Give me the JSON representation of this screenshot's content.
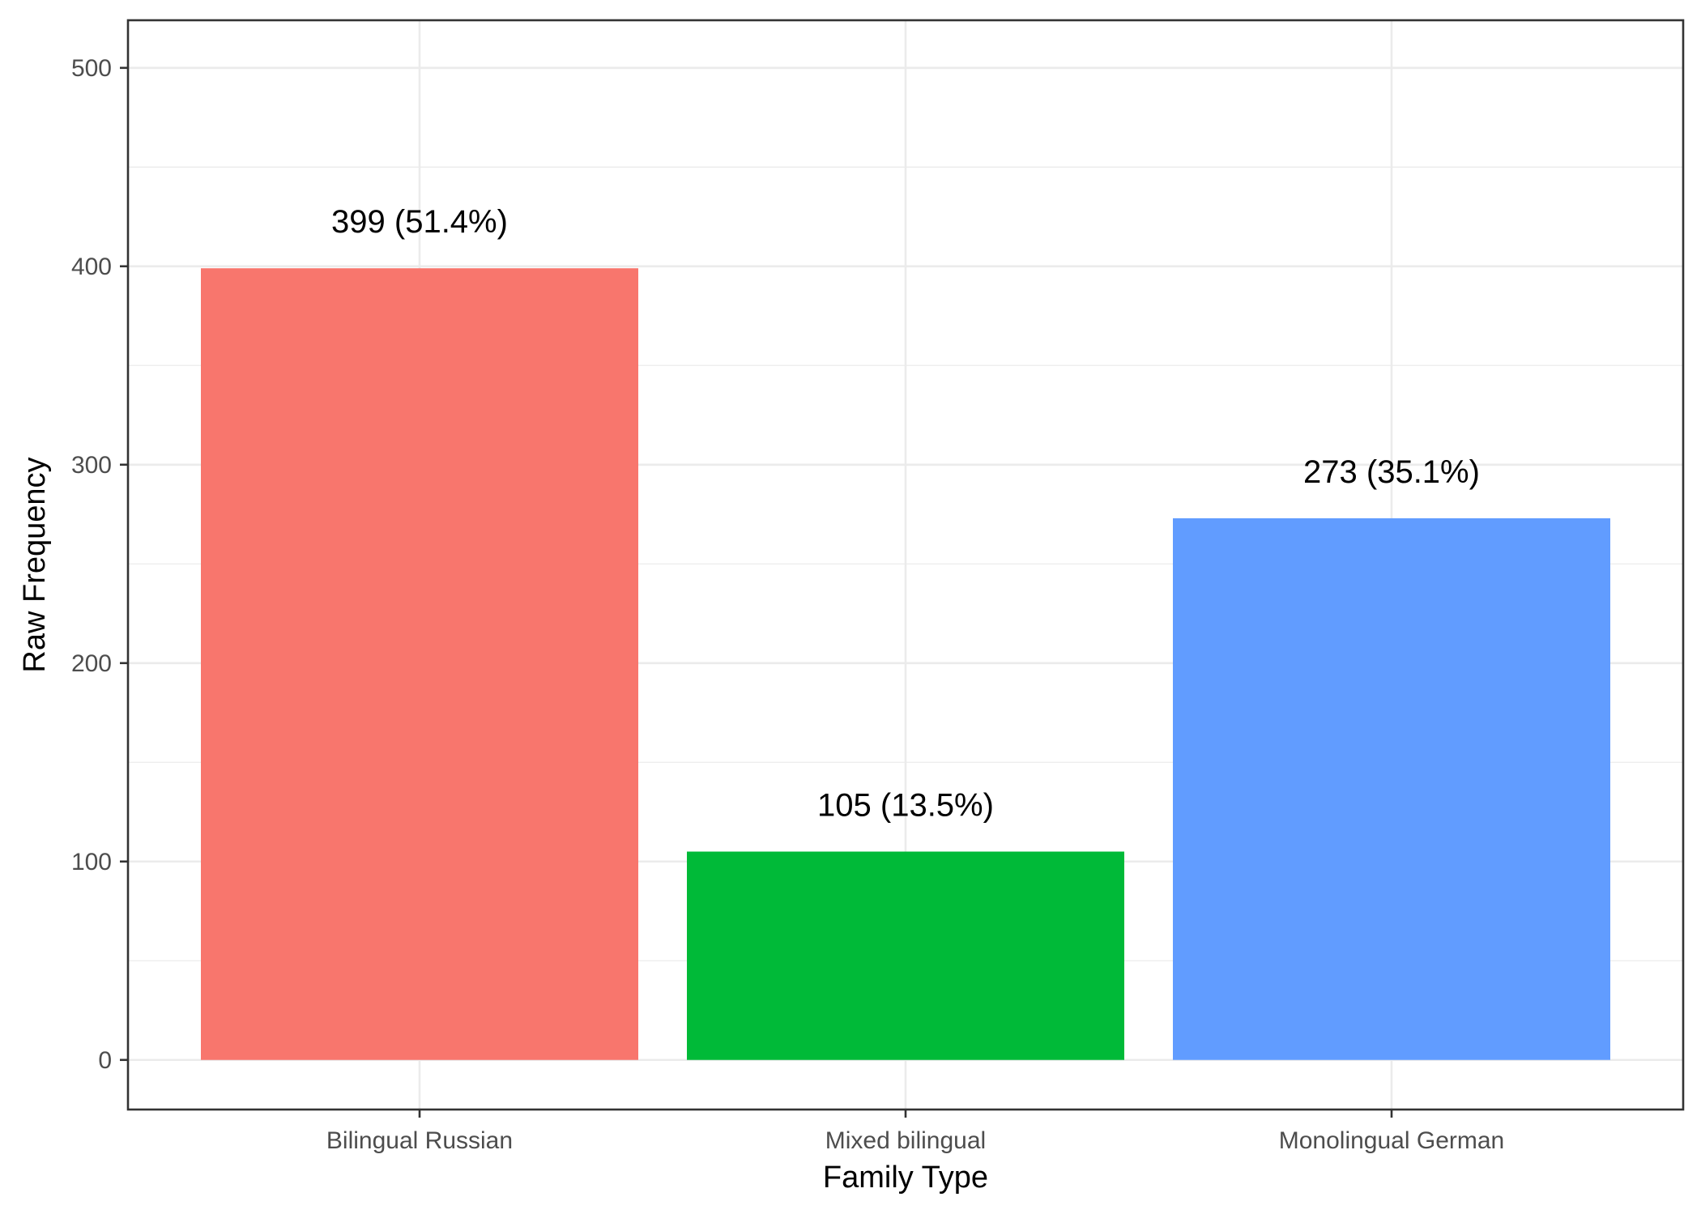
{
  "chart_data": {
    "type": "bar",
    "categories": [
      "Bilingual Russian",
      "Mixed bilingual",
      "Monolingual German"
    ],
    "values": [
      399,
      105,
      273
    ],
    "data_labels": [
      "399 (51.4%)",
      "105 (13.5%)",
      "273 (35.1%)"
    ],
    "colors": [
      "#F8766D",
      "#00BA38",
      "#619CFF"
    ],
    "xlabel": "Family Type",
    "ylabel": "Raw Frequency",
    "ylim": [
      -25,
      524
    ],
    "yticks": [
      0,
      100,
      200,
      300,
      400,
      500
    ],
    "ytick_labels": [
      "0",
      "100",
      "200",
      "300",
      "400",
      "500"
    ],
    "grid": true,
    "legend": "none"
  }
}
